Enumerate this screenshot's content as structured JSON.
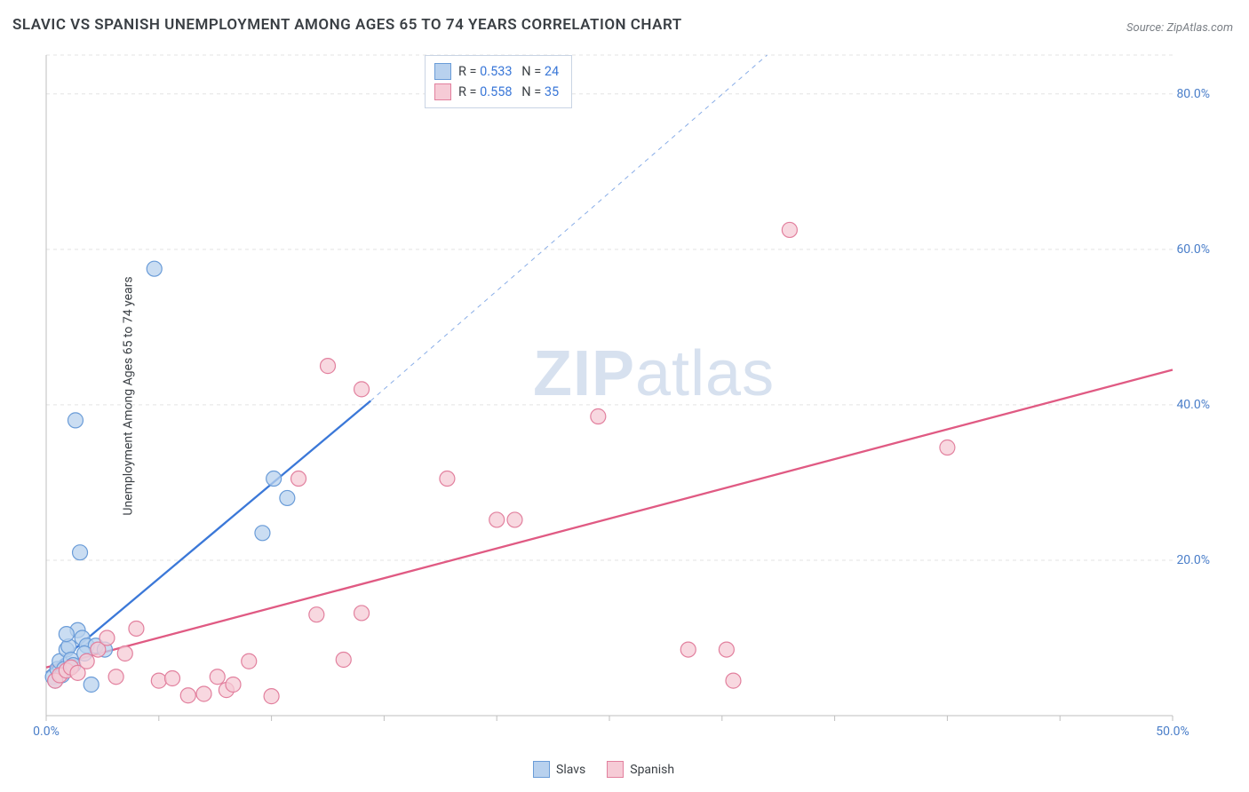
{
  "title": "SLAVIC VS SPANISH UNEMPLOYMENT AMONG AGES 65 TO 74 YEARS CORRELATION CHART",
  "source_label": "Source: ",
  "source_value": "ZipAtlas.com",
  "ylabel": "Unemployment Among Ages 65 to 74 years",
  "watermark_bold": "ZIP",
  "watermark_light": "atlas",
  "chart": {
    "type": "scatter",
    "xlim": [
      0,
      50
    ],
    "ylim": [
      0,
      85
    ],
    "xticks": [
      0,
      5,
      10,
      15,
      20,
      25,
      30,
      35,
      40,
      45,
      50
    ],
    "yticks": [
      0,
      20,
      40,
      60,
      85
    ],
    "xtick_labels": {
      "0": "0.0%",
      "50": "50.0%"
    },
    "ytick_labels": {
      "20": "20.0%",
      "40": "40.0%",
      "60": "60.0%",
      "80": "80.0%"
    },
    "grid_color": "#e3e3e3",
    "axis_color": "#bfbfbf",
    "background_color": "#ffffff",
    "marker_radius": 8.5,
    "marker_stroke_width": 1.2,
    "series": [
      {
        "name": "Slavs",
        "fill": "#b8d1ee",
        "stroke": "#6a9cd8",
        "fill_opacity": 0.75,
        "R": "0.533",
        "N": "24",
        "trend": {
          "x1": 0,
          "y1": 5.5,
          "x2": 14.4,
          "y2": 40.5,
          "ext_x2": 32,
          "ext_y2": 85,
          "color": "#3b78d8",
          "width": 2.3
        },
        "points": [
          [
            0.3,
            5.0
          ],
          [
            0.5,
            6.0
          ],
          [
            0.6,
            7.0
          ],
          [
            0.8,
            6.0
          ],
          [
            0.9,
            8.5
          ],
          [
            1.0,
            8.9
          ],
          [
            1.1,
            7.2
          ],
          [
            1.4,
            11.0
          ],
          [
            1.6,
            10.0
          ],
          [
            1.8,
            9.0
          ],
          [
            2.0,
            4.0
          ],
          [
            1.5,
            21.0
          ],
          [
            1.3,
            38.0
          ],
          [
            4.8,
            57.5
          ],
          [
            9.6,
            23.5
          ],
          [
            10.1,
            30.5
          ],
          [
            10.7,
            28.0
          ],
          [
            2.2,
            9.0
          ],
          [
            2.6,
            8.5
          ],
          [
            0.4,
            4.5
          ],
          [
            0.7,
            5.2
          ],
          [
            1.2,
            6.5
          ],
          [
            1.7,
            8.0
          ],
          [
            0.9,
            10.5
          ]
        ]
      },
      {
        "name": "Spanish",
        "fill": "#f6cbd6",
        "stroke": "#e2809e",
        "fill_opacity": 0.75,
        "R": "0.558",
        "N": "35",
        "trend": {
          "x1": 0,
          "y1": 6.2,
          "x2": 50,
          "y2": 44.5,
          "color": "#e05a83",
          "width": 2.3
        },
        "points": [
          [
            0.4,
            4.5
          ],
          [
            0.6,
            5.2
          ],
          [
            0.9,
            5.8
          ],
          [
            1.1,
            6.2
          ],
          [
            1.4,
            5.5
          ],
          [
            1.8,
            7.0
          ],
          [
            2.3,
            8.5
          ],
          [
            2.7,
            10.0
          ],
          [
            3.1,
            5.0
          ],
          [
            3.5,
            8.0
          ],
          [
            4.0,
            11.2
          ],
          [
            5.0,
            4.5
          ],
          [
            5.6,
            4.8
          ],
          [
            6.3,
            2.6
          ],
          [
            7.0,
            2.8
          ],
          [
            7.6,
            5.0
          ],
          [
            8.0,
            3.3
          ],
          [
            8.3,
            4.0
          ],
          [
            9.0,
            7.0
          ],
          [
            10.0,
            2.5
          ],
          [
            12.0,
            13.0
          ],
          [
            13.2,
            7.2
          ],
          [
            14.0,
            13.2
          ],
          [
            11.2,
            30.5
          ],
          [
            12.5,
            45.0
          ],
          [
            14.0,
            42.0
          ],
          [
            17.8,
            30.5
          ],
          [
            20.0,
            25.2
          ],
          [
            20.8,
            25.2
          ],
          [
            24.5,
            38.5
          ],
          [
            28.5,
            8.5
          ],
          [
            30.2,
            8.5
          ],
          [
            30.5,
            4.5
          ],
          [
            33.0,
            62.5
          ],
          [
            40.0,
            34.5
          ]
        ]
      }
    ]
  },
  "legend_top": {
    "r_label": "R = ",
    "n_label": "N = "
  },
  "legend_bottom": {
    "items": [
      "Slavs",
      "Spanish"
    ]
  }
}
